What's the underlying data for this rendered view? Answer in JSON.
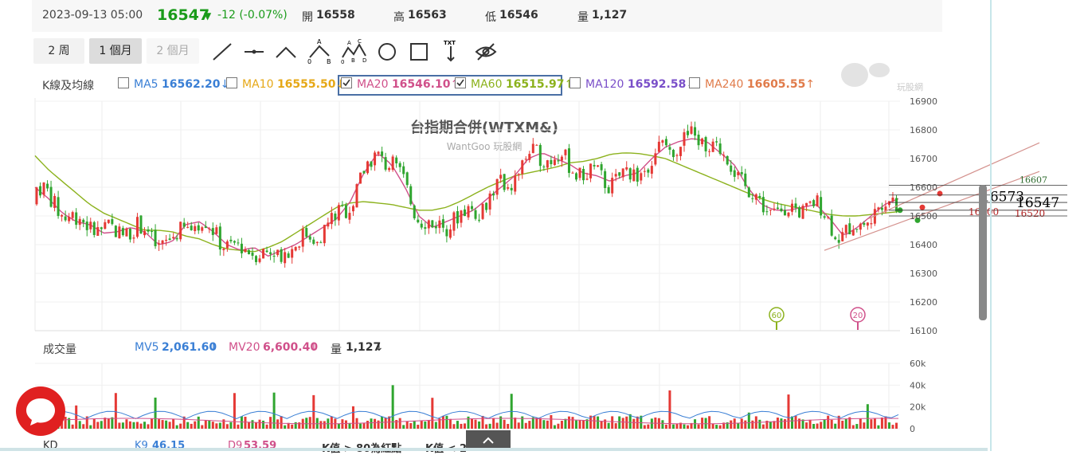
{
  "quote": {
    "datetime": "2023-09-13 05:00",
    "price": "16547",
    "change": "-12 (-0.07%)",
    "open_label": "開",
    "open": "16558",
    "high_label": "高",
    "high": "16563",
    "low_label": "低",
    "low": "16546",
    "vol_label": "量",
    "vol": "1,127"
  },
  "ranges": [
    "2 周",
    "1 個月",
    "2 個月"
  ],
  "tools": [
    "trend-line-icon",
    "horizontal-line-icon",
    "angle-icon",
    "abc-pattern-icon",
    "abcd-pattern-icon",
    "circle-icon",
    "rectangle-icon",
    "text-icon",
    "hide-icon"
  ],
  "tool_texts": {
    "txt": "TXT",
    "a": "A",
    "b": "B",
    "c": "C",
    "d": "D",
    "zero": "0"
  },
  "ma_bar": {
    "label": "K線及均線",
    "items": [
      {
        "name": "MA5",
        "value": "16562.20",
        "arrow": "↓",
        "checked": false,
        "color": "#3a7fd5"
      },
      {
        "name": "MA10",
        "value": "16555.50",
        "arrow": "↓",
        "checked": false,
        "color": "#e6a817"
      },
      {
        "name": "MA20",
        "value": "16546.10",
        "arrow": "↑",
        "checked": true,
        "color": "#d0508a"
      },
      {
        "name": "MA60",
        "value": "16515.97",
        "arrow": "↑",
        "checked": true,
        "color": "#8cb21d"
      },
      {
        "name": "MA120",
        "value": "16592.58",
        "arrow": "↓",
        "checked": false,
        "color": "#7a4fc9"
      },
      {
        "name": "MA240",
        "value": "16605.55",
        "arrow": "↑",
        "checked": false,
        "color": "#e07b4a"
      }
    ]
  },
  "watermark": {
    "brand": "玩股網",
    "title": "台指期合併(WTXM&)",
    "subtitle": "WantGoo 玩股網"
  },
  "volume_bar": {
    "label": "成交量",
    "mv5": "MV5",
    "mv5_value": "2,061.60",
    "mv5_arrow": "↓",
    "mv20": "MV20",
    "mv20_value": "6,600.40",
    "mv20_arrow": "↓",
    "vol_label": "量",
    "vol_value": "1,127",
    "vol_arrow": "↓"
  },
  "kd_bar": {
    "label": "KD",
    "k9": "K9",
    "k9_value": "46.15",
    "d9": "D9",
    "d9_value": "53.59",
    "note1": "K值 > 80為紅點",
    "note2": "K值 < 2"
  },
  "colors": {
    "up": "#e53935",
    "down": "#2fa52f",
    "ma20": "#d0508a",
    "ma60": "#8cb21d",
    "grid": "#e8e8e8"
  },
  "chart_data": {
    "type": "candlestick",
    "price_axis": {
      "ylim": [
        16100,
        16900
      ],
      "ticks": [
        16100,
        16200,
        16300,
        16400,
        16500,
        16600,
        16700,
        16800,
        16900
      ]
    },
    "volume_axis": {
      "ylim": [
        0,
        60000
      ],
      "ticks": [
        "0",
        "20k",
        "40k",
        "60k"
      ]
    },
    "ma20_points": [
      16600,
      16560,
      16510,
      16480,
      16470,
      16440,
      16445,
      16460,
      16445,
      16400,
      16410,
      16470,
      16480,
      16445,
      16400,
      16380,
      16390,
      16360,
      16380,
      16400,
      16430,
      16460,
      16490,
      16550,
      16650,
      16720,
      16680,
      16600,
      16500,
      16460,
      16480,
      16500,
      16520,
      16560,
      16600,
      16640,
      16700,
      16720,
      16700,
      16680,
      16650,
      16640,
      16620,
      16640,
      16650,
      16700,
      16740,
      16760,
      16770,
      16760,
      16720,
      16680,
      16600,
      16540,
      16520,
      16520,
      16530,
      16540,
      16490,
      16430,
      16460,
      16500,
      16540,
      16560
    ],
    "ma60_points": [
      16710,
      16660,
      16620,
      16580,
      16540,
      16510,
      16490,
      16470,
      16450,
      16450,
      16445,
      16430,
      16420,
      16400,
      16385,
      16380,
      16375,
      16390,
      16410,
      16440,
      16470,
      16500,
      16530,
      16545,
      16550,
      16545,
      16540,
      16530,
      16520,
      16520,
      16530,
      16550,
      16575,
      16600,
      16620,
      16640,
      16650,
      16660,
      16670,
      16685,
      16690,
      16700,
      16715,
      16720,
      16718,
      16710,
      16700,
      16680,
      16660,
      16640,
      16620,
      16600,
      16580,
      16560,
      16545,
      16535,
      16525,
      16515,
      16505,
      16500,
      16500,
      16505,
      16510,
      16515
    ],
    "price_labels": [
      {
        "value": 16607,
        "text": "16607",
        "color": "#2e6b2e"
      },
      {
        "value": 16573,
        "text": "16573",
        "color": "#000"
      },
      {
        "value": 16547,
        "text": "16547",
        "color": "#000"
      },
      {
        "value": 16520,
        "text": "16520",
        "color": "#b22222"
      },
      {
        "value": 16500,
        "text": "16500",
        "color": "#b22222"
      }
    ],
    "markers": [
      {
        "text": "60",
        "color": "#8cb21d"
      },
      {
        "text": "20",
        "color": "#d0508a"
      }
    ]
  }
}
